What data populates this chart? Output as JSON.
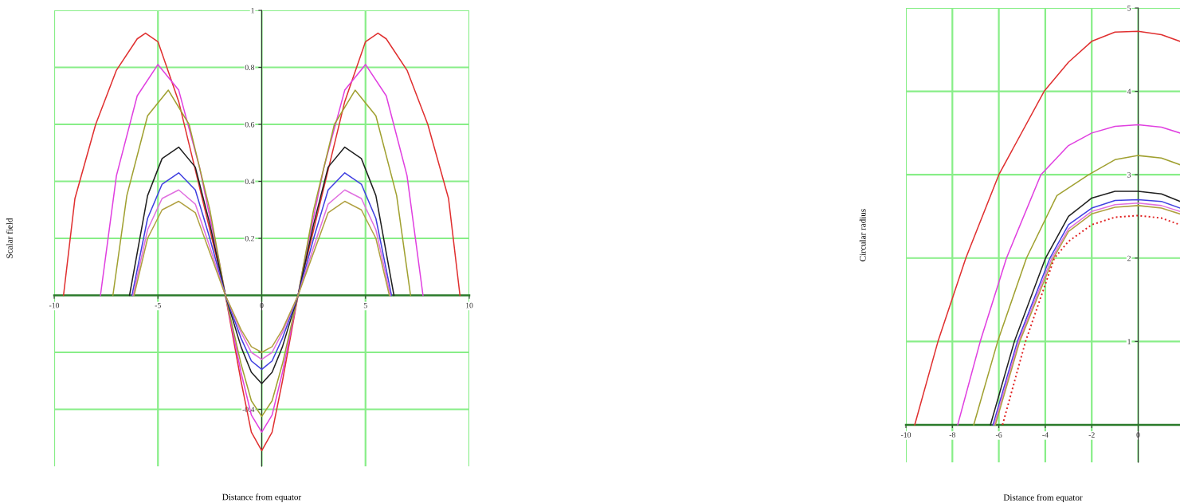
{
  "chart_data": [
    {
      "type": "line",
      "xlabel": "Distance from equator",
      "ylabel": "Scalar field",
      "xlim": [
        -10,
        10
      ],
      "ylim": [
        -0.6,
        1
      ],
      "xticks": [
        -10,
        -5,
        0,
        5,
        10
      ],
      "yticks": [
        {
          "value": -0.4,
          "label": "-0.4"
        },
        {
          "value": -0.2,
          "label": null
        },
        0.2,
        0.4,
        0.6,
        0.8,
        1
      ],
      "grid": true,
      "line_style": "solid",
      "series": [
        {
          "color": "#e03030",
          "x": [
            -9.55,
            -9,
            -8,
            -7,
            -6,
            -5.6,
            -5,
            -4,
            -3,
            -2,
            -1.75,
            -1,
            -0.5,
            0,
            0.5,
            1,
            1.75,
            2,
            3,
            4,
            5,
            5.6,
            6,
            7,
            8,
            9,
            9.55
          ],
          "values": [
            0,
            0.34,
            0.6,
            0.79,
            0.9,
            0.92,
            0.89,
            0.68,
            0.38,
            0.08,
            0,
            -0.3,
            -0.48,
            -0.545,
            -0.48,
            -0.3,
            0,
            0.08,
            0.38,
            0.68,
            0.89,
            0.92,
            0.9,
            0.79,
            0.6,
            0.34,
            0
          ]
        },
        {
          "color": "#e040e0",
          "x": [
            -7.77,
            -7,
            -6,
            -5,
            -4,
            -3,
            -2,
            -1.75,
            -1,
            -0.5,
            0,
            0.5,
            1,
            1.75,
            2,
            3,
            4,
            5,
            6,
            7,
            7.77
          ],
          "values": [
            0,
            0.42,
            0.7,
            0.81,
            0.72,
            0.45,
            0.1,
            0,
            -0.27,
            -0.42,
            -0.48,
            -0.42,
            -0.27,
            0,
            0.1,
            0.45,
            0.72,
            0.81,
            0.7,
            0.42,
            0
          ]
        },
        {
          "color": "#a0a030",
          "x": [
            -7.17,
            -6.5,
            -5.5,
            -4.5,
            -3.5,
            -2.5,
            -1.75,
            -1,
            -0.5,
            0,
            0.5,
            1,
            1.75,
            2.5,
            3.5,
            4.5,
            5.5,
            6.5,
            7.17
          ],
          "values": [
            0,
            0.35,
            0.63,
            0.72,
            0.6,
            0.3,
            0,
            -0.24,
            -0.37,
            -0.425,
            -0.37,
            -0.24,
            0,
            0.3,
            0.6,
            0.72,
            0.63,
            0.35,
            0
          ]
        },
        {
          "color": "#202020",
          "x": [
            -6.37,
            -5.5,
            -4.8,
            -4,
            -3.2,
            -2.5,
            -1.75,
            -1,
            -0.5,
            0,
            0.5,
            1,
            1.75,
            2.5,
            3.2,
            4,
            4.8,
            5.5,
            6.37
          ],
          "values": [
            0,
            0.35,
            0.48,
            0.52,
            0.45,
            0.25,
            0,
            -0.18,
            -0.27,
            -0.31,
            -0.27,
            -0.18,
            0,
            0.25,
            0.45,
            0.52,
            0.48,
            0.35,
            0
          ]
        },
        {
          "color": "#4040e0",
          "x": [
            -6.25,
            -5.5,
            -4.8,
            -4,
            -3.2,
            -2.5,
            -1.75,
            -1,
            -0.5,
            0,
            0.5,
            1,
            1.75,
            2.5,
            3.2,
            4,
            4.8,
            5.5,
            6.25
          ],
          "values": [
            0,
            0.27,
            0.39,
            0.43,
            0.37,
            0.2,
            0,
            -0.15,
            -0.23,
            -0.26,
            -0.23,
            -0.15,
            0,
            0.2,
            0.37,
            0.43,
            0.39,
            0.27,
            0
          ]
        },
        {
          "color": "#e070e0",
          "x": [
            -6.2,
            -5.5,
            -4.8,
            -4,
            -3.2,
            -2.5,
            -1.75,
            -1,
            -0.5,
            0,
            0.5,
            1,
            1.75,
            2.5,
            3.2,
            4,
            4.8,
            5.5,
            6.2
          ],
          "values": [
            0,
            0.23,
            0.34,
            0.37,
            0.32,
            0.17,
            0,
            -0.13,
            -0.2,
            -0.225,
            -0.2,
            -0.13,
            0,
            0.17,
            0.32,
            0.37,
            0.34,
            0.23,
            0
          ]
        },
        {
          "color": "#b0a040",
          "x": [
            -6.15,
            -5.5,
            -4.8,
            -4,
            -3.2,
            -2.5,
            -1.75,
            -1,
            -0.5,
            0,
            0.5,
            1,
            1.75,
            2.5,
            3.2,
            4,
            4.8,
            5.5,
            6.15
          ],
          "values": [
            0,
            0.2,
            0.3,
            0.33,
            0.29,
            0.15,
            0,
            -0.12,
            -0.18,
            -0.2,
            -0.18,
            -0.12,
            0,
            0.15,
            0.29,
            0.33,
            0.3,
            0.2,
            0
          ]
        }
      ]
    },
    {
      "type": "line",
      "xlabel": "Distance from equator",
      "ylabel": "Circular radius",
      "xlim": [
        -10,
        1.8
      ],
      "ylim": [
        -0.45,
        5
      ],
      "xticks": [
        -10,
        -8,
        -6,
        -4,
        -2,
        0
      ],
      "yticks": [
        1,
        2,
        3,
        4,
        5
      ],
      "grid": true,
      "line_style": "solid",
      "series": [
        {
          "color": "#e03030",
          "x": [
            -9.62,
            -8.62,
            -7.42,
            -6,
            -4.05,
            -3,
            -2,
            -1,
            0,
            1,
            1.8
          ],
          "values": [
            0,
            1,
            2,
            3,
            4,
            4.35,
            4.6,
            4.71,
            4.72,
            4.68,
            4.6
          ]
        },
        {
          "color": "#e040e0",
          "x": [
            -7.77,
            -6.8,
            -5.67,
            -4.19,
            -3,
            -2,
            -1,
            0,
            1,
            1.8
          ],
          "values": [
            0,
            1,
            2,
            3,
            3.35,
            3.5,
            3.58,
            3.6,
            3.57,
            3.5
          ]
        },
        {
          "color": "#a0a030",
          "x": [
            -7.08,
            -6.05,
            -4.81,
            -3.5,
            -2.13,
            -1,
            0,
            1,
            1.8
          ],
          "values": [
            0,
            1,
            2,
            2.75,
            3,
            3.18,
            3.23,
            3.2,
            3.12
          ]
        },
        {
          "color": "#202020",
          "x": [
            -6.36,
            -5.33,
            -3.99,
            -3,
            -2,
            -1,
            0,
            1,
            1.8
          ],
          "values": [
            0,
            1,
            2,
            2.5,
            2.72,
            2.8,
            2.8,
            2.77,
            2.68
          ]
        },
        {
          "color": "#4040e0",
          "x": [
            -6.25,
            -5.2,
            -3.8,
            -3,
            -2,
            -1,
            0,
            1,
            1.8
          ],
          "values": [
            0,
            1,
            2,
            2.4,
            2.6,
            2.69,
            2.7,
            2.68,
            2.6
          ]
        },
        {
          "color": "#e070e0",
          "x": [
            -6.2,
            -5.15,
            -3.72,
            -3,
            -2,
            -1,
            0,
            1,
            1.8
          ],
          "values": [
            0,
            1,
            2,
            2.35,
            2.56,
            2.64,
            2.66,
            2.63,
            2.56
          ]
        },
        {
          "color": "#b0a040",
          "x": [
            -6.15,
            -5.1,
            -3.65,
            -3,
            -2,
            -1,
            0,
            1,
            1.8
          ],
          "values": [
            0,
            1,
            2,
            2.32,
            2.53,
            2.61,
            2.63,
            2.6,
            2.53
          ]
        },
        {
          "color": "#e02020",
          "line_style": "dotted",
          "x": [
            -5.84,
            -4.85,
            -3.61,
            -3,
            -2,
            -1,
            0,
            1,
            1.8
          ],
          "values": [
            0,
            1,
            2,
            2.2,
            2.4,
            2.49,
            2.51,
            2.48,
            2.4
          ]
        }
      ]
    }
  ]
}
